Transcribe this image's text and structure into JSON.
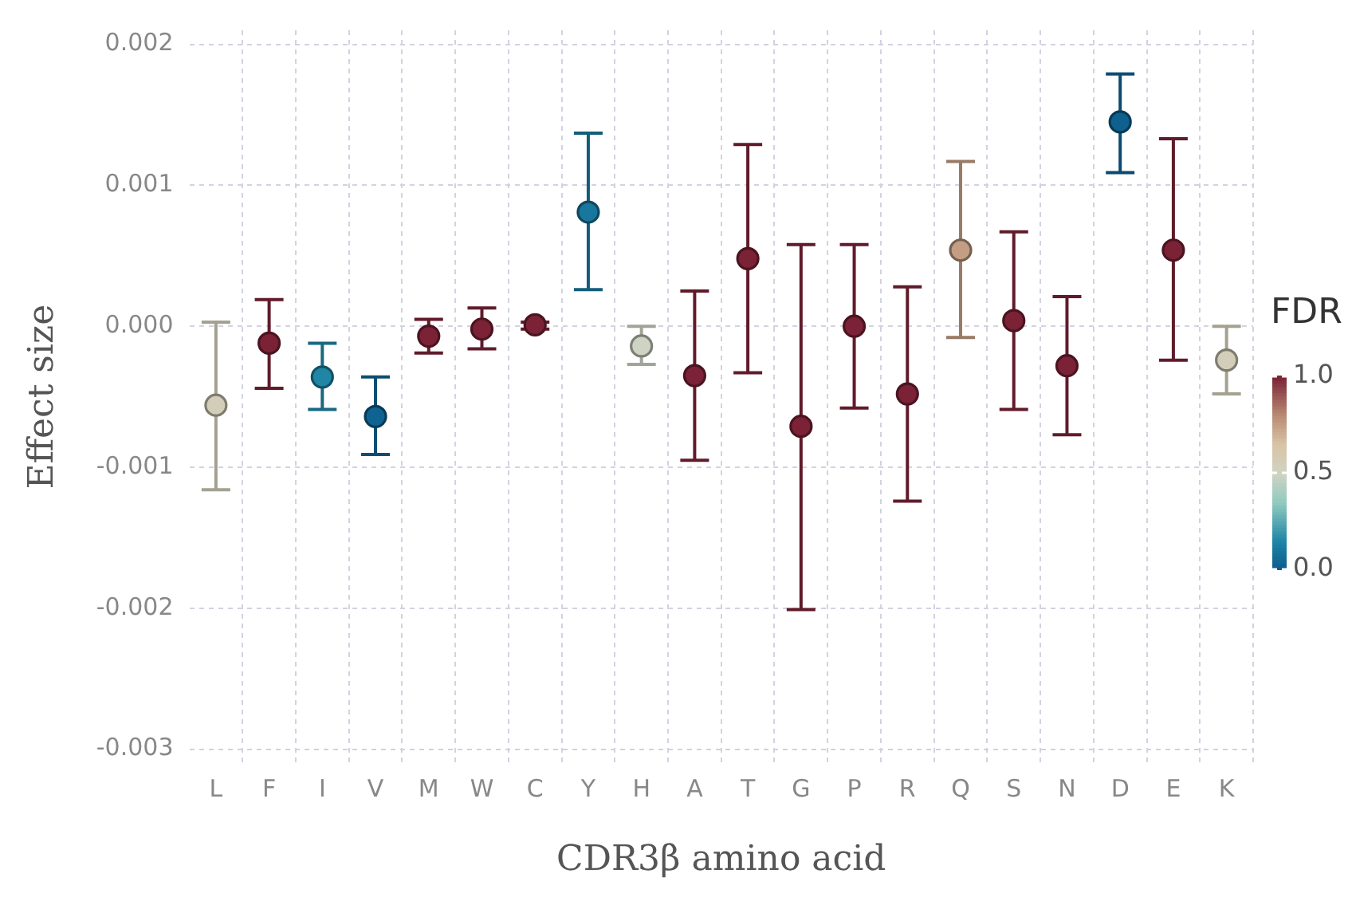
{
  "chart_data": {
    "type": "scatter",
    "xlabel": "CDR3β amino acid",
    "ylabel": "Effect size",
    "clabel": "FDR",
    "categories": [
      "L",
      "F",
      "I",
      "V",
      "M",
      "W",
      "C",
      "Y",
      "H",
      "A",
      "T",
      "G",
      "P",
      "R",
      "Q",
      "S",
      "N",
      "D",
      "E",
      "K"
    ],
    "values": [
      -0.00056,
      -0.00012,
      -0.00036,
      -0.00064,
      -7e-05,
      -2e-05,
      1e-05,
      0.00081,
      -0.00014,
      -0.00035,
      0.00048,
      -0.00071,
      0.0,
      -0.00048,
      0.00054,
      4e-05,
      -0.00028,
      0.00145,
      0.00054,
      -0.00024
    ],
    "errors": [
      [
        -0.00116,
        3e-05
      ],
      [
        -0.00044,
        0.00019
      ],
      [
        -0.00059,
        -0.00012
      ],
      [
        -0.00091,
        -0.00036
      ],
      [
        -0.00019,
        5e-05
      ],
      [
        -0.00016,
        0.00013
      ],
      [
        -2e-05,
        3e-05
      ],
      [
        0.00026,
        0.00137
      ],
      [
        -0.00027,
        0.0
      ],
      [
        -0.00095,
        0.00025
      ],
      [
        -0.00033,
        0.00129
      ],
      [
        -0.00201,
        0.00058
      ],
      [
        -0.00058,
        0.00058
      ],
      [
        -0.00124,
        0.00028
      ],
      [
        -8e-05,
        0.00117
      ],
      [
        -0.00059,
        0.00067
      ],
      [
        -0.00077,
        0.00021
      ],
      [
        0.00109,
        0.00179
      ],
      [
        -0.00024,
        0.00133
      ],
      [
        -0.00048,
        0.0
      ]
    ],
    "cvalues": [
      0.55,
      1.0,
      0.15,
      0.03,
      1.0,
      1.0,
      1.0,
      0.1,
      0.5,
      1.0,
      1.0,
      1.0,
      1.0,
      1.0,
      0.75,
      1.0,
      1.0,
      0.02,
      1.0,
      0.55
    ],
    "ylim": [
      -0.0031,
      0.0021
    ],
    "yticks": [
      {
        "value": -0.003,
        "label": "-0.003"
      },
      {
        "value": -0.002,
        "label": "-0.002"
      },
      {
        "value": -0.001,
        "label": "-0.001"
      },
      {
        "value": 0,
        "label": "0.000"
      },
      {
        "value": 0.001,
        "label": "0.001"
      },
      {
        "value": 0.002,
        "label": "0.002"
      }
    ],
    "clim": [
      0,
      1
    ],
    "cticks": [
      {
        "value": 0,
        "label": "0.0"
      },
      {
        "value": 0.5,
        "label": "0.5"
      },
      {
        "value": 1,
        "label": "1.0"
      }
    ],
    "grid": true,
    "marker": "circle"
  }
}
